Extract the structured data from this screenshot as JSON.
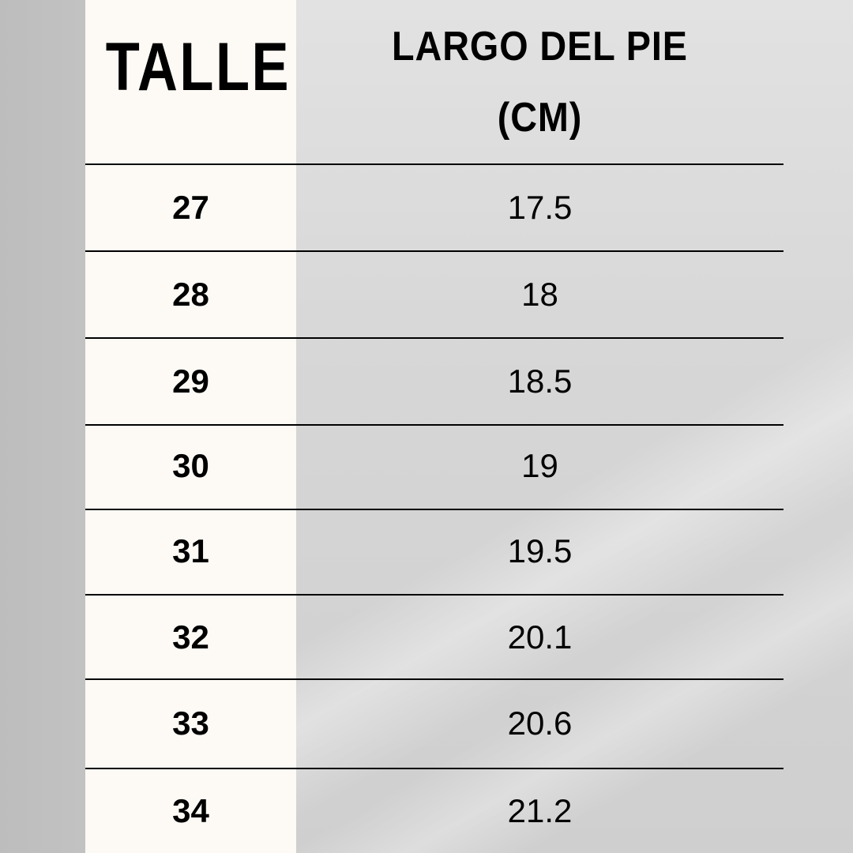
{
  "header": {
    "size_label": "TALLE",
    "length_label_line1": "LARGO DEL PIE",
    "length_label_line2": "(CM)"
  },
  "rows": [
    {
      "size": "27",
      "length": "17.5"
    },
    {
      "size": "28",
      "length": "18"
    },
    {
      "size": "29",
      "length": "18.5"
    },
    {
      "size": "30",
      "length": "19"
    },
    {
      "size": "31",
      "length": "19.5"
    },
    {
      "size": "32",
      "length": "20.1"
    },
    {
      "size": "33",
      "length": "20.6"
    },
    {
      "size": "34",
      "length": "21.2"
    }
  ],
  "colors": {
    "column_bg": "#fdfaf5",
    "text": "#000000",
    "background": "#d6d6d6"
  }
}
